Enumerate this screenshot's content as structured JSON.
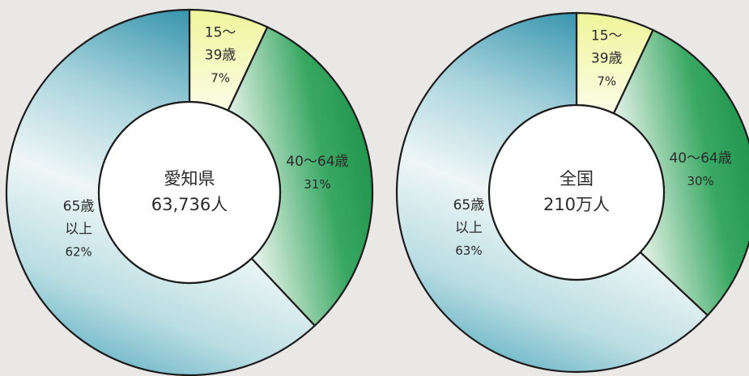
{
  "chart_data": [
    {
      "type": "pie",
      "center_title": "愛知県",
      "center_value": "63,736人",
      "slices": [
        {
          "name_lines": [
            "15～",
            "39歳"
          ],
          "value": 7,
          "pct_label": "7%",
          "color": "#eef6a0"
        },
        {
          "name_lines": [
            "40～64歳"
          ],
          "value": 31,
          "pct_label": "31%",
          "color": "#1f9a4e"
        },
        {
          "name_lines": [
            "65歳",
            "以上"
          ],
          "value": 62,
          "pct_label": "62%",
          "color": "#2a90a8"
        }
      ]
    },
    {
      "type": "pie",
      "center_title": "全国",
      "center_value": "210万人",
      "slices": [
        {
          "name_lines": [
            "15～",
            "39歳"
          ],
          "value": 7,
          "pct_label": "7%",
          "color": "#eef6a0"
        },
        {
          "name_lines": [
            "40～64歳"
          ],
          "value": 30,
          "pct_label": "30%",
          "color": "#1f9a4e"
        },
        {
          "name_lines": [
            "65歳",
            "以上"
          ],
          "value": 63,
          "pct_label": "63%",
          "color": "#2a90a8"
        }
      ]
    }
  ]
}
